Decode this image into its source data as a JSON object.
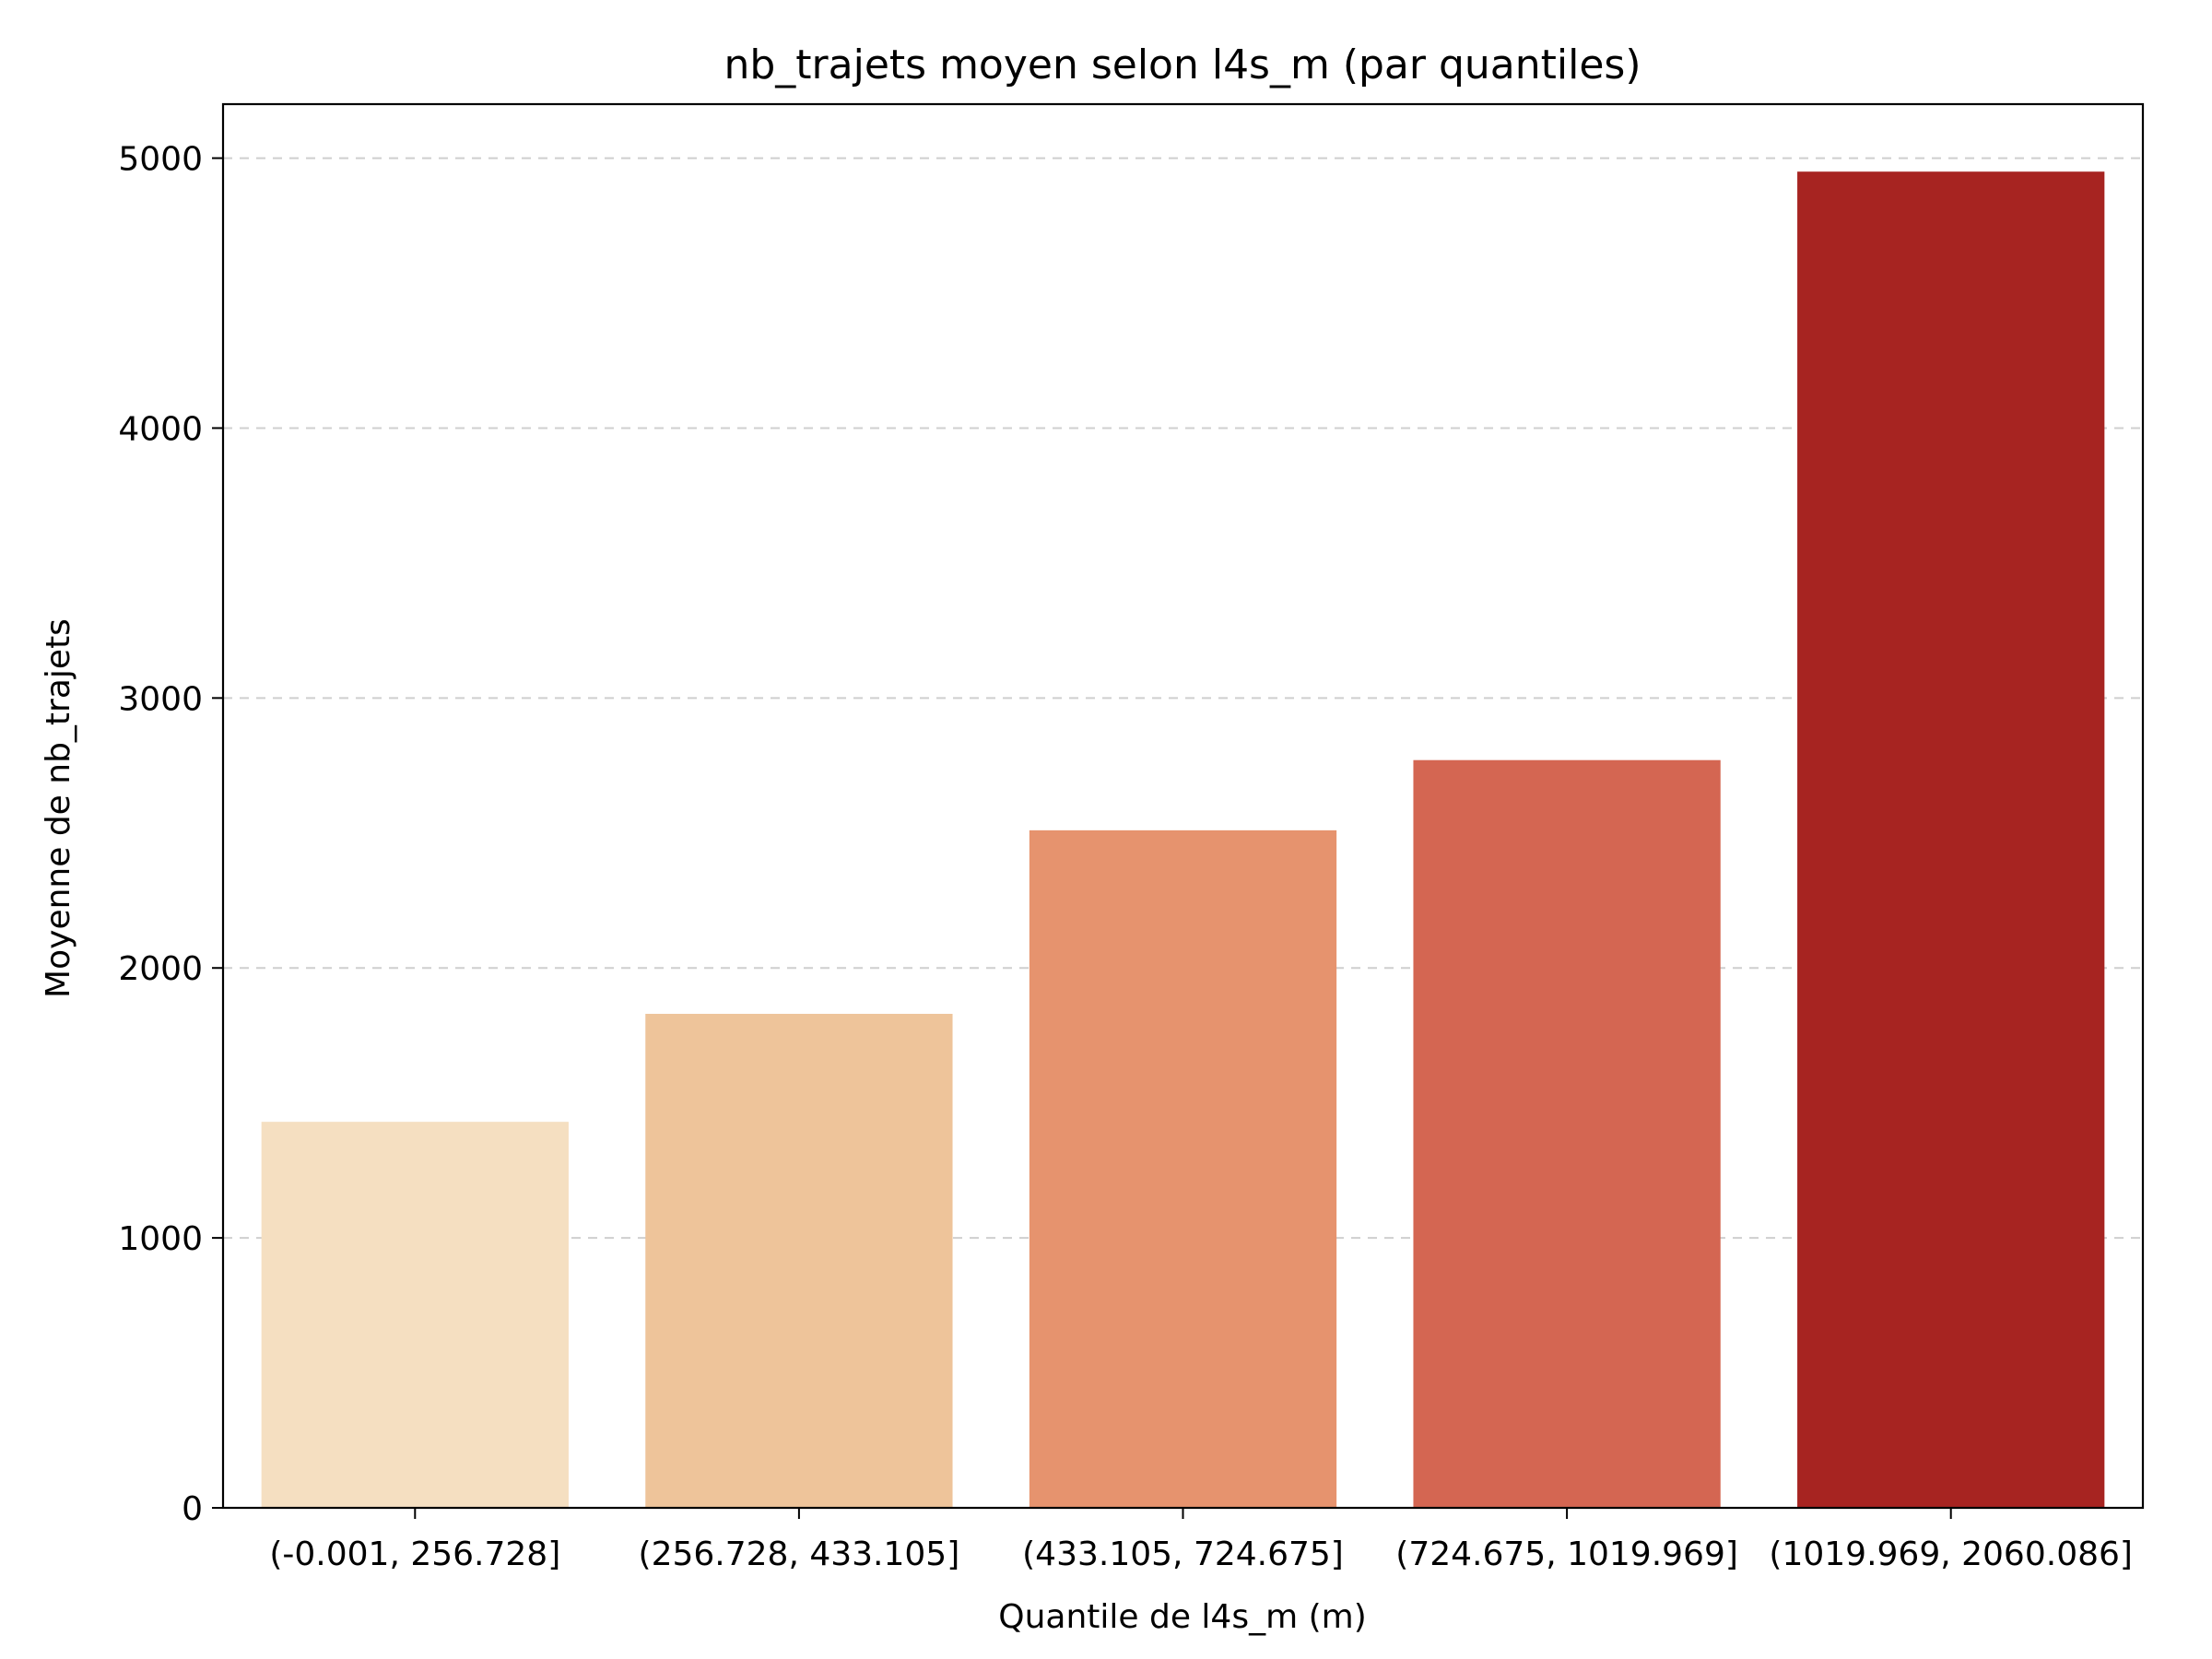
{
  "chart_data": {
    "type": "bar",
    "title": "nb_trajets moyen selon l4s_m (par quantiles)",
    "xlabel": "Quantile de l4s_m (m)",
    "ylabel": "Moyenne de nb_trajets",
    "categories": [
      "(-0.001, 256.728]",
      "(256.728, 433.105]",
      "(433.105, 724.675]",
      "(724.675, 1019.969]",
      "(1019.969, 2060.086]"
    ],
    "values": [
      1430,
      1830,
      2510,
      2770,
      4950
    ],
    "ylim": [
      0,
      5200
    ],
    "yticks": [
      "0",
      "1000",
      "2000",
      "3000",
      "4000",
      "5000"
    ],
    "bar_colors": [
      "#f5dfc1",
      "#eec49a",
      "#e6936e",
      "#d46652",
      "#a72421"
    ],
    "grid": "y",
    "legend": "none"
  }
}
